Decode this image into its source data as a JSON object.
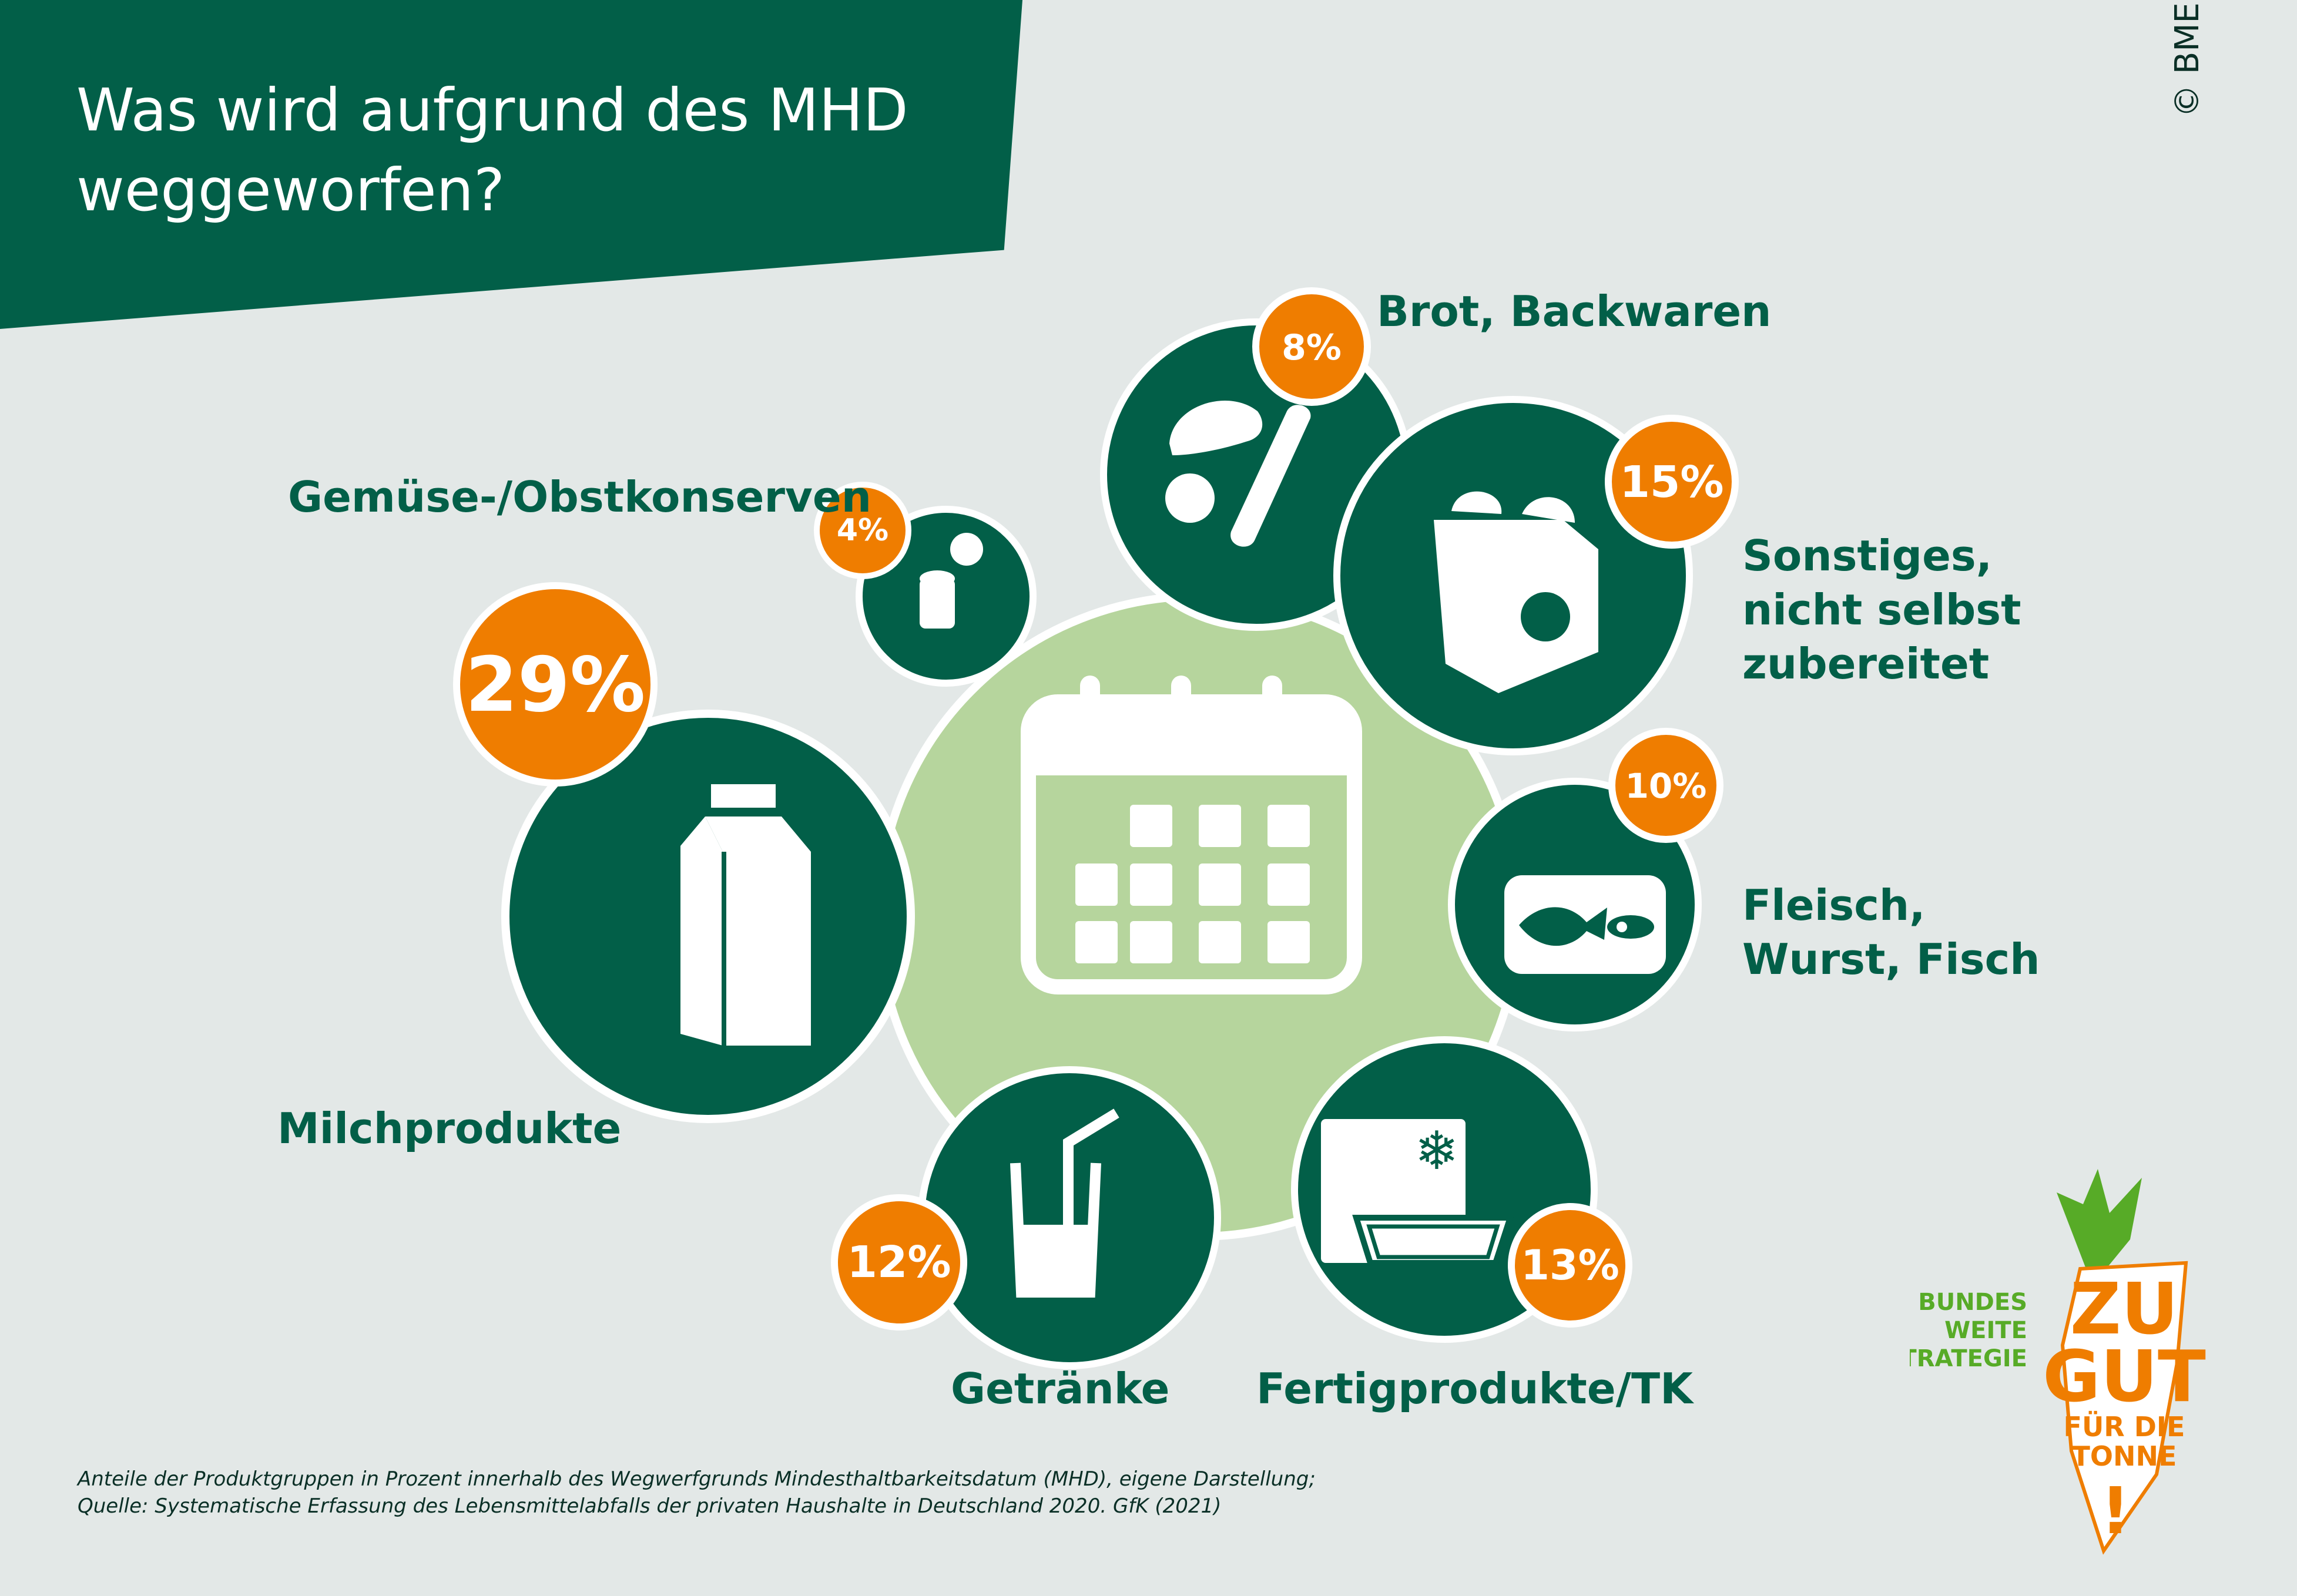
{
  "title": "Was wird aufgrund des MHD weggeworfen?",
  "copyright": "© BMEL",
  "categories": [
    {
      "label": "Milchprodukte",
      "value": "29%",
      "icon": "milk-carton-icon"
    },
    {
      "label": "Gemüse-/Obstkonserven",
      "value": "4%",
      "icon": "can-icon"
    },
    {
      "label": "Brot, Backwaren",
      "value": "8%",
      "icon": "bread-icon"
    },
    {
      "label": "Sonstiges, nicht selbst zubereitet",
      "value": "15%",
      "icon": "takeaway-box-icon"
    },
    {
      "label": "Fleisch, Wurst, Fisch",
      "value": "10%",
      "icon": "fish-tin-icon"
    },
    {
      "label": "Fertigprodukte/TK",
      "value": "13%",
      "icon": "frozen-meal-icon"
    },
    {
      "label": "Getränke",
      "value": "12%",
      "icon": "drink-glass-icon"
    }
  ],
  "center_icon": "calendar-icon",
  "footnote_line1": "Anteile der Produktgruppen in Prozent innerhalb des Wegwerfgrunds Mindesthaltbarkeitsdatum (MHD), eigene Darstellung;",
  "footnote_line2": "Quelle: Systematische Erfassung des Lebensmittelabfalls der privaten Haushalte in Deutschland 2020. GfK (2021)",
  "logo": {
    "line_bundes": "BUNDES",
    "line_weite": "WEITE",
    "line_strategie": "STRATEGIE",
    "line_zu": "ZU",
    "line_gut": "GUT",
    "line_fuer_die": "FÜR DIE",
    "line_tonne": "TONNE",
    "exclamation": "!"
  },
  "colors": {
    "dark_green": "#025f48",
    "light_green": "#b6d59d",
    "orange": "#ef7d00",
    "background": "#e3e8e7",
    "logo_green": "#57ab27"
  }
}
